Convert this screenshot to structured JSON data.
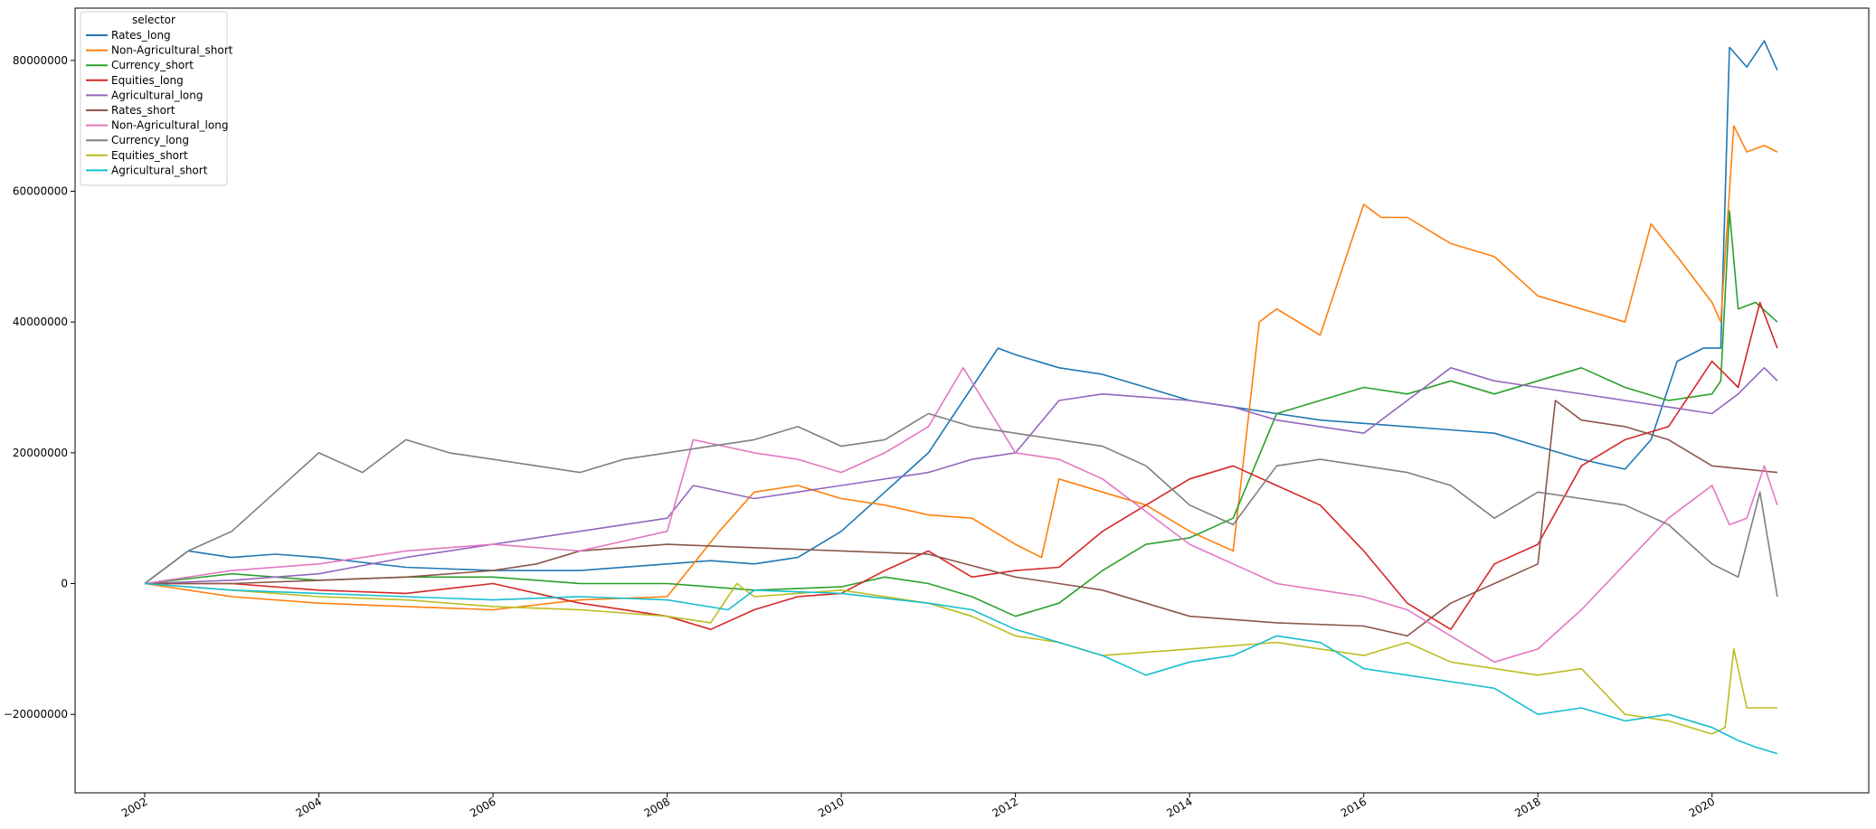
{
  "chart_data": {
    "type": "line",
    "title": "",
    "xlabel": "",
    "ylabel": "",
    "xlim": [
      2001.2,
      2021.8
    ],
    "ylim": [
      -32000000,
      88000000
    ],
    "x_ticks": [
      2002,
      2004,
      2006,
      2008,
      2010,
      2012,
      2014,
      2016,
      2018,
      2020
    ],
    "x_tick_labels": [
      "2002",
      "2004",
      "2006",
      "2008",
      "2010",
      "2012",
      "2014",
      "2016",
      "2018",
      "2020"
    ],
    "y_ticks": [
      -20000000,
      0,
      20000000,
      40000000,
      60000000,
      80000000
    ],
    "y_tick_labels": [
      "−20000000",
      "0",
      "20000000",
      "40000000",
      "60000000",
      "80000000"
    ],
    "grid": false,
    "legend": {
      "title": "selector",
      "placement": "top-left"
    },
    "series": [
      {
        "name": "Rates_long",
        "color": "#1f77b4",
        "x": [
          2002.0,
          2002.5,
          2003.0,
          2003.5,
          2004.0,
          2005.0,
          2006.0,
          2007.0,
          2008.0,
          2008.5,
          2009.0,
          2009.5,
          2010.0,
          2010.5,
          2011.0,
          2011.5,
          2011.8,
          2012.0,
          2012.5,
          2013.0,
          2013.5,
          2014.0,
          2014.5,
          2015.0,
          2015.5,
          2016.0,
          2016.5,
          2017.0,
          2017.5,
          2018.0,
          2018.5,
          2019.0,
          2019.3,
          2019.6,
          2019.9,
          2020.1,
          2020.2,
          2020.4,
          2020.6,
          2020.75
        ],
        "y": [
          0,
          5000000,
          4000000,
          4500000,
          4000000,
          2500000,
          2000000,
          2000000,
          3000000,
          3500000,
          3000000,
          4000000,
          8000000,
          14000000,
          20000000,
          30000000,
          36000000,
          35000000,
          33000000,
          32000000,
          30000000,
          28000000,
          27000000,
          26000000,
          25000000,
          24500000,
          24000000,
          23500000,
          23000000,
          21000000,
          19000000,
          17500000,
          22000000,
          34000000,
          36000000,
          36000000,
          82000000,
          79000000,
          83000000,
          78500000
        ]
      },
      {
        "name": "Non-Agricultural_short",
        "color": "#ff7f0e",
        "x": [
          2002.0,
          2003.0,
          2004.0,
          2005.0,
          2006.0,
          2007.0,
          2008.0,
          2008.6,
          2009.0,
          2009.5,
          2010.0,
          2010.5,
          2011.0,
          2011.5,
          2012.0,
          2012.3,
          2012.5,
          2013.0,
          2013.5,
          2014.0,
          2014.5,
          2014.8,
          2015.0,
          2015.5,
          2016.0,
          2016.2,
          2016.5,
          2017.0,
          2017.5,
          2018.0,
          2018.5,
          2019.0,
          2019.3,
          2019.6,
          2020.0,
          2020.1,
          2020.25,
          2020.4,
          2020.6,
          2020.75
        ],
        "y": [
          0,
          -2000000,
          -3000000,
          -3500000,
          -4000000,
          -2500000,
          -2000000,
          8000000,
          14000000,
          15000000,
          13000000,
          12000000,
          10500000,
          10000000,
          6000000,
          4000000,
          16000000,
          14000000,
          12000000,
          8000000,
          5000000,
          40000000,
          42000000,
          38000000,
          58000000,
          56000000,
          56000000,
          52000000,
          50000000,
          44000000,
          42000000,
          40000000,
          55000000,
          50000000,
          43000000,
          40000000,
          70000000,
          66000000,
          67000000,
          66000000
        ]
      },
      {
        "name": "Currency_short",
        "color": "#2ca02c",
        "x": [
          2002.0,
          2003.0,
          2004.0,
          2005.0,
          2006.0,
          2007.0,
          2008.0,
          2009.0,
          2010.0,
          2010.5,
          2011.0,
          2011.5,
          2012.0,
          2012.5,
          2013.0,
          2013.5,
          2014.0,
          2014.5,
          2015.0,
          2015.5,
          2016.0,
          2016.5,
          2017.0,
          2017.5,
          2018.0,
          2018.5,
          2019.0,
          2019.5,
          2020.0,
          2020.1,
          2020.2,
          2020.3,
          2020.5,
          2020.75
        ],
        "y": [
          0,
          1500000,
          500000,
          1000000,
          1000000,
          0,
          0,
          -1000000,
          -500000,
          1000000,
          0,
          -2000000,
          -5000000,
          -3000000,
          2000000,
          6000000,
          7000000,
          10000000,
          26000000,
          28000000,
          30000000,
          29000000,
          31000000,
          29000000,
          31000000,
          33000000,
          30000000,
          28000000,
          29000000,
          31000000,
          57000000,
          42000000,
          43000000,
          40000000
        ]
      },
      {
        "name": "Equities_long",
        "color": "#d62728",
        "x": [
          2002.0,
          2003.0,
          2004.0,
          2005.0,
          2006.0,
          2007.0,
          2008.0,
          2008.5,
          2009.0,
          2009.5,
          2010.0,
          2010.5,
          2011.0,
          2011.5,
          2012.0,
          2012.5,
          2013.0,
          2013.5,
          2014.0,
          2014.5,
          2015.0,
          2015.5,
          2016.0,
          2016.5,
          2017.0,
          2017.5,
          2018.0,
          2018.5,
          2019.0,
          2019.5,
          2020.0,
          2020.3,
          2020.55,
          2020.75
        ],
        "y": [
          0,
          0,
          -1000000,
          -1500000,
          0,
          -3000000,
          -5000000,
          -7000000,
          -4000000,
          -2000000,
          -1500000,
          2000000,
          5000000,
          1000000,
          2000000,
          2500000,
          8000000,
          12000000,
          16000000,
          18000000,
          15000000,
          12000000,
          5000000,
          -3000000,
          -7000000,
          3000000,
          6000000,
          18000000,
          22000000,
          24000000,
          34000000,
          30000000,
          43000000,
          36000000
        ]
      },
      {
        "name": "Agricultural_long",
        "color": "#9467bd",
        "x": [
          2002.0,
          2003.0,
          2004.0,
          2005.0,
          2006.0,
          2007.0,
          2008.0,
          2008.3,
          2009.0,
          2009.5,
          2010.0,
          2011.0,
          2011.5,
          2012.0,
          2012.5,
          2013.0,
          2014.0,
          2014.5,
          2015.0,
          2016.0,
          2016.5,
          2017.0,
          2017.5,
          2018.0,
          2019.0,
          2019.5,
          2020.0,
          2020.3,
          2020.6,
          2020.75
        ],
        "y": [
          0,
          500000,
          1500000,
          4000000,
          6000000,
          8000000,
          10000000,
          15000000,
          13000000,
          14000000,
          15000000,
          17000000,
          19000000,
          20000000,
          28000000,
          29000000,
          28000000,
          27000000,
          25000000,
          23000000,
          28000000,
          33000000,
          31000000,
          30000000,
          28000000,
          27000000,
          26000000,
          29000000,
          33000000,
          31000000
        ]
      },
      {
        "name": "Rates_short",
        "color": "#8c564b",
        "x": [
          2002.0,
          2003.0,
          2004.0,
          2005.0,
          2006.0,
          2006.5,
          2007.0,
          2008.0,
          2009.0,
          2010.0,
          2011.0,
          2012.0,
          2012.5,
          2013.0,
          2013.5,
          2014.0,
          2015.0,
          2016.0,
          2016.5,
          2017.0,
          2017.5,
          2018.0,
          2018.2,
          2018.5,
          2019.0,
          2019.5,
          2020.0,
          2020.75
        ],
        "y": [
          0,
          0,
          500000,
          1000000,
          2000000,
          3000000,
          5000000,
          6000000,
          5500000,
          5000000,
          4500000,
          1000000,
          0,
          -1000000,
          -3000000,
          -5000000,
          -6000000,
          -6500000,
          -8000000,
          -3000000,
          0,
          3000000,
          28000000,
          25000000,
          24000000,
          22000000,
          18000000,
          17000000
        ]
      },
      {
        "name": "Non-Agricultural_long",
        "color": "#e377c2",
        "x": [
          2002.0,
          2003.0,
          2004.0,
          2005.0,
          2006.0,
          2007.0,
          2008.0,
          2008.3,
          2009.0,
          2009.5,
          2010.0,
          2010.5,
          2011.0,
          2011.4,
          2012.0,
          2012.5,
          2013.0,
          2013.5,
          2014.0,
          2014.5,
          2015.0,
          2015.5,
          2016.0,
          2016.5,
          2017.0,
          2017.5,
          2018.0,
          2018.5,
          2019.0,
          2019.5,
          2020.0,
          2020.2,
          2020.4,
          2020.6,
          2020.75
        ],
        "y": [
          0,
          2000000,
          3000000,
          5000000,
          6000000,
          5000000,
          8000000,
          22000000,
          20000000,
          19000000,
          17000000,
          20000000,
          24000000,
          33000000,
          20000000,
          19000000,
          16000000,
          11000000,
          6000000,
          3000000,
          0,
          -1000000,
          -2000000,
          -4000000,
          -8000000,
          -12000000,
          -10000000,
          -4000000,
          3000000,
          10000000,
          15000000,
          9000000,
          10000000,
          18000000,
          12000000
        ]
      },
      {
        "name": "Currency_long",
        "color": "#7f7f7f",
        "x": [
          2002.0,
          2002.5,
          2003.0,
          2003.5,
          2004.0,
          2004.5,
          2005.0,
          2005.5,
          2006.0,
          2006.5,
          2007.0,
          2007.5,
          2008.0,
          2008.5,
          2009.0,
          2009.5,
          2010.0,
          2010.5,
          2011.0,
          2011.5,
          2012.0,
          2012.5,
          2013.0,
          2013.5,
          2014.0,
          2014.5,
          2015.0,
          2015.5,
          2016.0,
          2016.5,
          2017.0,
          2017.5,
          2018.0,
          2018.5,
          2019.0,
          2019.5,
          2020.0,
          2020.3,
          2020.55,
          2020.65,
          2020.75
        ],
        "y": [
          0,
          5000000,
          8000000,
          14000000,
          20000000,
          17000000,
          22000000,
          20000000,
          19000000,
          18000000,
          17000000,
          19000000,
          20000000,
          21000000,
          22000000,
          24000000,
          21000000,
          22000000,
          26000000,
          24000000,
          23000000,
          22000000,
          21000000,
          18000000,
          12000000,
          9000000,
          18000000,
          19000000,
          18000000,
          17000000,
          15000000,
          10000000,
          14000000,
          13000000,
          12000000,
          9000000,
          3000000,
          1000000,
          14000000,
          6000000,
          -2000000
        ]
      },
      {
        "name": "Equities_short",
        "color": "#bcbd22",
        "x": [
          2002.0,
          2003.0,
          2004.0,
          2005.0,
          2006.0,
          2007.0,
          2008.0,
          2008.5,
          2008.8,
          2009.0,
          2010.0,
          2011.0,
          2011.5,
          2012.0,
          2012.5,
          2013.0,
          2014.0,
          2015.0,
          2015.5,
          2016.0,
          2016.5,
          2017.0,
          2017.5,
          2018.0,
          2018.5,
          2019.0,
          2019.5,
          2020.0,
          2020.15,
          2020.25,
          2020.4,
          2020.75
        ],
        "y": [
          0,
          -1000000,
          -2000000,
          -2500000,
          -3500000,
          -4000000,
          -5000000,
          -6000000,
          0,
          -2000000,
          -1000000,
          -3000000,
          -5000000,
          -8000000,
          -9000000,
          -11000000,
          -10000000,
          -9000000,
          -10000000,
          -11000000,
          -9000000,
          -12000000,
          -13000000,
          -14000000,
          -13000000,
          -20000000,
          -21000000,
          -23000000,
          -22000000,
          -10000000,
          -19000000,
          -19000000
        ]
      },
      {
        "name": "Agricultural_short",
        "color": "#17becf",
        "x": [
          2002.0,
          2003.0,
          2004.0,
          2005.0,
          2006.0,
          2007.0,
          2008.0,
          2008.7,
          2009.0,
          2010.0,
          2011.0,
          2011.5,
          2012.0,
          2012.5,
          2013.0,
          2013.5,
          2014.0,
          2014.5,
          2015.0,
          2015.5,
          2016.0,
          2016.5,
          2017.0,
          2017.5,
          2018.0,
          2018.5,
          2019.0,
          2019.5,
          2020.0,
          2020.3,
          2020.5,
          2020.75
        ],
        "y": [
          0,
          -1000000,
          -1500000,
          -2000000,
          -2500000,
          -2000000,
          -2500000,
          -4000000,
          -1000000,
          -1500000,
          -3000000,
          -4000000,
          -7000000,
          -9000000,
          -11000000,
          -14000000,
          -12000000,
          -11000000,
          -8000000,
          -9000000,
          -13000000,
          -14000000,
          -15000000,
          -16000000,
          -20000000,
          -19000000,
          -21000000,
          -20000000,
          -22000000,
          -24000000,
          -25000000,
          -26000000
        ]
      }
    ]
  }
}
